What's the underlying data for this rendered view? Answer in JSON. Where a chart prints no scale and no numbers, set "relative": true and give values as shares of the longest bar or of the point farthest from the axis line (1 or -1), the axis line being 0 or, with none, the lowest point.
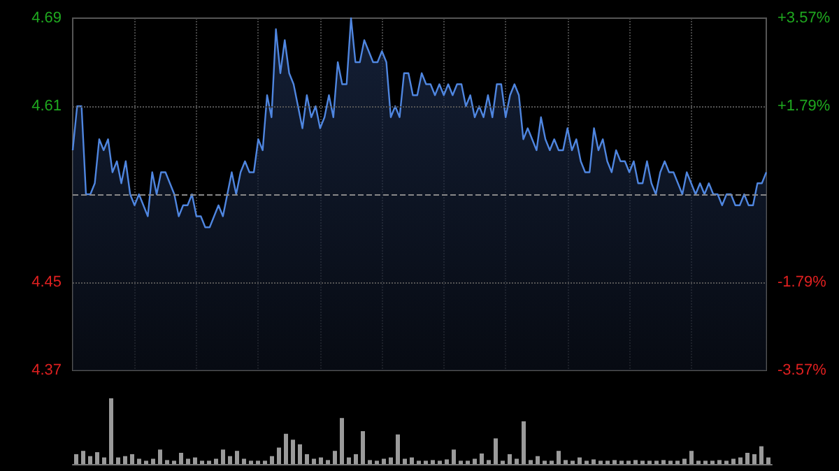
{
  "chart_data": [
    {
      "type": "area",
      "categories": [
        null,
        null,
        null,
        null,
        null,
        null,
        null,
        null,
        null,
        null,
        null,
        null,
        null,
        null,
        null,
        null,
        null,
        null,
        null,
        null,
        null,
        null,
        null,
        null,
        null,
        null,
        null,
        null,
        null,
        null,
        null,
        null,
        null,
        null,
        null,
        null,
        null,
        null,
        null,
        null,
        null,
        null,
        null,
        null,
        null,
        null,
        null,
        null,
        null,
        null,
        null,
        null,
        null,
        null,
        null,
        null,
        null,
        null,
        null,
        null,
        null,
        null,
        null,
        null,
        null,
        null,
        null,
        null,
        null,
        null,
        null,
        null,
        null,
        null,
        null,
        null,
        null,
        null,
        null,
        null,
        null,
        null,
        null,
        null,
        null,
        null,
        null,
        null,
        null,
        null,
        null,
        null,
        null,
        null,
        null,
        null,
        null,
        null,
        null,
        null,
        null,
        null,
        null,
        null,
        null,
        null,
        null,
        null,
        null,
        null,
        null,
        null,
        null,
        null,
        null,
        null,
        null,
        null,
        null,
        null,
        null,
        null,
        null,
        null,
        null,
        null,
        null,
        null,
        null,
        null,
        null,
        null,
        null,
        null,
        null,
        null,
        null,
        null,
        null,
        null,
        null,
        null,
        null,
        null,
        null,
        null,
        null,
        null,
        null,
        null,
        null,
        null,
        null,
        null,
        null,
        null,
        null,
        null
      ],
      "series": [
        {
          "color": "#4f86e0",
          "values": [
            4.57,
            4.61,
            4.61,
            4.53,
            4.53,
            4.54,
            4.58,
            4.57,
            4.58,
            4.55,
            4.56,
            4.54,
            4.56,
            4.53,
            4.52,
            4.53,
            4.52,
            4.51,
            4.55,
            4.53,
            4.55,
            4.55,
            4.54,
            4.53,
            4.51,
            4.52,
            4.52,
            4.53,
            4.51,
            4.51,
            4.5,
            4.5,
            4.51,
            4.52,
            4.51,
            4.53,
            4.55,
            4.53,
            4.55,
            4.56,
            4.55,
            4.55,
            4.58,
            4.57,
            4.62,
            4.6,
            4.68,
            4.64,
            4.67,
            4.64,
            4.63,
            4.61,
            4.59,
            4.62,
            4.6,
            4.61,
            4.59,
            4.6,
            4.62,
            4.6,
            4.65,
            4.63,
            4.63,
            4.69,
            4.65,
            4.65,
            4.67,
            4.66,
            4.65,
            4.65,
            4.66,
            4.65,
            4.6,
            4.61,
            4.6,
            4.64,
            4.64,
            4.62,
            4.62,
            4.64,
            4.63,
            4.63,
            4.62,
            4.63,
            4.62,
            4.63,
            4.62,
            4.63,
            4.63,
            4.61,
            4.62,
            4.6,
            4.61,
            4.6,
            4.62,
            4.6,
            4.63,
            4.63,
            4.6,
            4.62,
            4.63,
            4.62,
            4.58,
            4.59,
            4.58,
            4.57,
            4.6,
            4.58,
            4.57,
            4.58,
            4.57,
            4.57,
            4.59,
            4.57,
            4.58,
            4.56,
            4.55,
            4.55,
            4.59,
            4.57,
            4.58,
            4.56,
            4.55,
            4.57,
            4.56,
            4.56,
            4.55,
            4.56,
            4.54,
            4.54,
            4.56,
            4.54,
            4.53,
            4.55,
            4.56,
            4.55,
            4.55,
            4.54,
            4.53,
            4.55,
            4.54,
            4.53,
            4.54,
            4.53,
            4.54,
            4.53,
            4.53,
            4.52,
            4.53,
            4.53,
            4.52,
            4.52,
            4.53,
            4.52,
            4.52,
            4.54,
            4.54,
            4.55
          ]
        }
      ],
      "ylim": [
        4.37,
        4.69
      ],
      "yticks": [
        4.69,
        4.61,
        4.45,
        4.37
      ],
      "y2lim": [
        -3.57,
        3.57
      ],
      "y2ticks": [
        {
          "value": 3.57,
          "label": "+3.57%"
        },
        {
          "value": 1.79,
          "label": "+1.79%"
        },
        {
          "value": -1.79,
          "label": "-1.79%"
        },
        {
          "value": -3.57,
          "label": "-3.57%"
        }
      ],
      "ref_lines": [
        {
          "axis": "y",
          "value": 4.53,
          "color": "#888888",
          "line_style": "dashed"
        }
      ],
      "grid": true,
      "line_style": "solid"
    },
    {
      "type": "bar",
      "relative": true,
      "categories": [
        null,
        null,
        null,
        null,
        null,
        null,
        null,
        null,
        null,
        null,
        null,
        null,
        null,
        null,
        null,
        null,
        null,
        null,
        null,
        null,
        null,
        null,
        null,
        null,
        null,
        null,
        null,
        null,
        null,
        null,
        null,
        null,
        null,
        null,
        null,
        null,
        null,
        null,
        null,
        null,
        null,
        null,
        null,
        null,
        null,
        null,
        null,
        null,
        null,
        null,
        null,
        null,
        null,
        null,
        null,
        null,
        null,
        null,
        null,
        null,
        null,
        null,
        null,
        null,
        null,
        null,
        null,
        null,
        null,
        null,
        null,
        null,
        null,
        null,
        null,
        null,
        null,
        null,
        null,
        null,
        null,
        null,
        null,
        null,
        null,
        null,
        null,
        null,
        null,
        null,
        null,
        null,
        null,
        null,
        null,
        null,
        null,
        null,
        null,
        null
      ],
      "series": [
        {
          "color": "#9a9a9a",
          "values": [
            0.15,
            0.2,
            0.12,
            0.18,
            0.1,
            1.0,
            0.1,
            0.12,
            0.15,
            0.08,
            0.05,
            0.08,
            0.22,
            0.06,
            0.05,
            0.17,
            0.08,
            0.1,
            0.05,
            0.05,
            0.08,
            0.22,
            0.12,
            0.2,
            0.08,
            0.05,
            0.05,
            0.05,
            0.12,
            0.25,
            0.46,
            0.37,
            0.3,
            0.15,
            0.08,
            0.1,
            0.06,
            0.2,
            0.7,
            0.1,
            0.15,
            0.5,
            0.06,
            0.05,
            0.08,
            0.1,
            0.45,
            0.08,
            0.1,
            0.05,
            0.05,
            0.06,
            0.05,
            0.07,
            0.22,
            0.05,
            0.05,
            0.08,
            0.16,
            0.06,
            0.39,
            0.05,
            0.15,
            0.08,
            0.65,
            0.06,
            0.12,
            0.05,
            0.05,
            0.2,
            0.06,
            0.05,
            0.1,
            0.05,
            0.07,
            0.05,
            0.05,
            0.06,
            0.05,
            0.05,
            0.06,
            0.05,
            0.05,
            0.05,
            0.06,
            0.05,
            0.05,
            0.08,
            0.2,
            0.05,
            0.05,
            0.05,
            0.06,
            0.05,
            0.08,
            0.1,
            0.17,
            0.15,
            0.27,
            0.1
          ]
        }
      ]
    }
  ]
}
